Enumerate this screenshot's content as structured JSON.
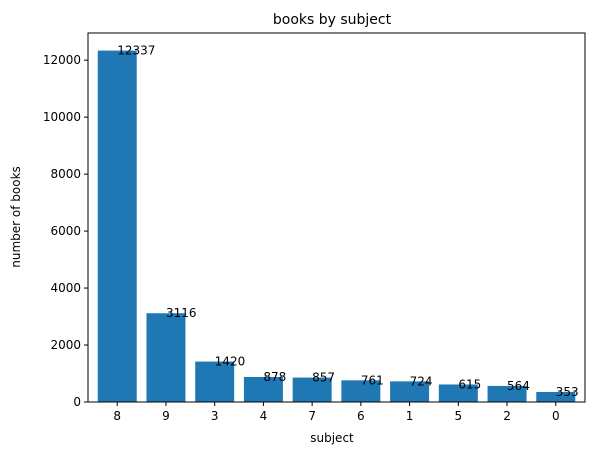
{
  "chart_data": {
    "type": "bar",
    "title": "books by subject",
    "xlabel": "subject",
    "ylabel": "number of books",
    "categories": [
      "8",
      "9",
      "3",
      "4",
      "7",
      "6",
      "1",
      "5",
      "2",
      "0"
    ],
    "values": [
      12337,
      3116,
      1420,
      878,
      857,
      761,
      724,
      615,
      564,
      353
    ],
    "ylim": [
      0,
      12954
    ],
    "yticks": [
      0,
      2000,
      4000,
      6000,
      8000,
      10000,
      12000
    ],
    "grid": false,
    "legend": "none",
    "bar_color": "#1f77b4"
  }
}
